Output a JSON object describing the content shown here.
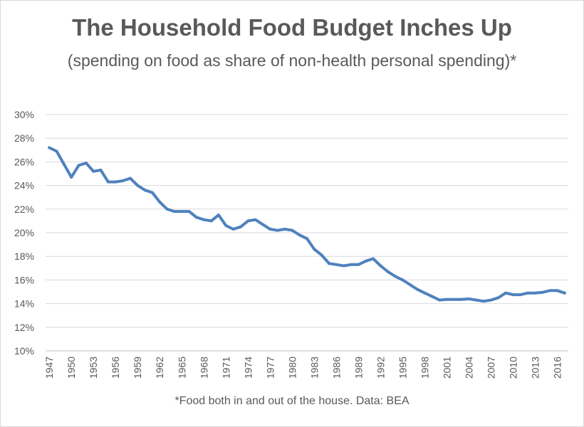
{
  "chart_data": {
    "type": "line",
    "title": "The Household Food Budget Inches Up",
    "subtitle": "(spending on food as share of non-health personal spending)*",
    "footnote": "*Food both in and out of the house. Data: BEA",
    "xlabel": "",
    "ylabel": "",
    "ylim": [
      10,
      30
    ],
    "y_ticks": [
      "10%",
      "12%",
      "14%",
      "16%",
      "18%",
      "20%",
      "22%",
      "24%",
      "26%",
      "28%",
      "30%"
    ],
    "x_ticks": [
      "1947",
      "1950",
      "1953",
      "1956",
      "1959",
      "1962",
      "1965",
      "1968",
      "1971",
      "1974",
      "1977",
      "1980",
      "1983",
      "1986",
      "1989",
      "1992",
      "1995",
      "1998",
      "2001",
      "2004",
      "2007",
      "2010",
      "2013",
      "2016"
    ],
    "grid": true,
    "legend": "none",
    "line_color": "#4f81bd",
    "series": [
      {
        "x": [
          1947,
          1948,
          1949,
          1950,
          1951,
          1952,
          1953,
          1954,
          1955,
          1956,
          1957,
          1958,
          1959,
          1960,
          1961,
          1962,
          1963,
          1964,
          1965,
          1966,
          1967,
          1968,
          1969,
          1970,
          1971,
          1972,
          1973,
          1974,
          1975,
          1976,
          1977,
          1978,
          1979,
          1980,
          1981,
          1982,
          1983,
          1984,
          1985,
          1986,
          1987,
          1988,
          1989,
          1990,
          1991,
          1992,
          1993,
          1994,
          1995,
          1996,
          1997,
          1998,
          1999,
          2000,
          2001,
          2002,
          2003,
          2004,
          2005,
          2006,
          2007,
          2008,
          2009,
          2010,
          2011,
          2012,
          2013,
          2014,
          2015,
          2016,
          2017
        ],
        "values": [
          27.2,
          26.9,
          25.8,
          24.7,
          25.7,
          25.9,
          25.2,
          25.3,
          24.3,
          24.3,
          24.4,
          24.6,
          24.0,
          23.6,
          23.4,
          22.6,
          22.0,
          21.8,
          21.8,
          21.8,
          21.3,
          21.1,
          21.0,
          21.5,
          20.6,
          20.3,
          20.5,
          21.0,
          21.1,
          20.7,
          20.3,
          20.2,
          20.3,
          20.2,
          19.8,
          19.5,
          18.6,
          18.1,
          17.4,
          17.3,
          17.2,
          17.3,
          17.3,
          17.6,
          17.8,
          17.2,
          16.7,
          16.3,
          16.0,
          15.6,
          15.2,
          14.9,
          14.6,
          14.3,
          14.35,
          14.35,
          14.35,
          14.4,
          14.3,
          14.2,
          14.3,
          14.5,
          14.9,
          14.75,
          14.75,
          14.9,
          14.9,
          14.95,
          15.1,
          15.1,
          14.9
        ]
      }
    ]
  }
}
